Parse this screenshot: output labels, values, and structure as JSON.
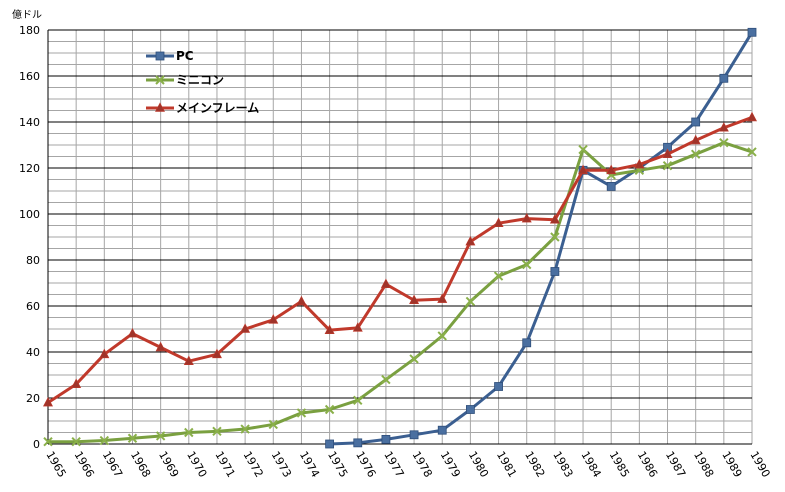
{
  "chart_data": {
    "type": "line",
    "y_unit_label": "億ドル",
    "ylim": [
      0,
      180
    ],
    "y_ticks": [
      0,
      20,
      40,
      60,
      80,
      100,
      120,
      140,
      160,
      180
    ],
    "grid": true,
    "legend_position": "top-left",
    "x": [
      "1965",
      "1966",
      "1967",
      "1968",
      "1969",
      "1970",
      "1971",
      "1972",
      "1973",
      "1974",
      "1975",
      "1976",
      "1977",
      "1978",
      "1979",
      "1980",
      "1981",
      "1982",
      "1983",
      "1984",
      "1985",
      "1986",
      "1987",
      "1988",
      "1989",
      "1990"
    ],
    "series": [
      {
        "name": "PC",
        "color": "#4a6fa0",
        "line_color": "#3b5f91",
        "marker": "square",
        "values": [
          null,
          null,
          null,
          null,
          null,
          null,
          null,
          null,
          null,
          null,
          0,
          0.5,
          2,
          4,
          6,
          15,
          25,
          44,
          75,
          119,
          112,
          120,
          129,
          140,
          159,
          179
        ]
      },
      {
        "name": "ミニコン",
        "color": "#8ab04a",
        "line_color": "#7aa040",
        "marker": "x",
        "values": [
          1,
          1,
          1.5,
          2.5,
          3.5,
          5,
          5.5,
          6.5,
          8.5,
          13.5,
          15,
          19,
          28,
          37,
          47,
          62,
          73,
          78,
          90,
          128,
          117,
          119,
          121,
          126,
          131,
          127
        ]
      },
      {
        "name": "メインフレーム",
        "color": "#c0392b",
        "line_color": "#c0392b",
        "marker": "triangle",
        "values": [
          18,
          26,
          39,
          48,
          42,
          36,
          39,
          50,
          54,
          62,
          49.5,
          50.5,
          69.5,
          62.5,
          63,
          88,
          96,
          98,
          97.5,
          119,
          119,
          121.5,
          126,
          132,
          137.5,
          142
        ]
      }
    ]
  }
}
